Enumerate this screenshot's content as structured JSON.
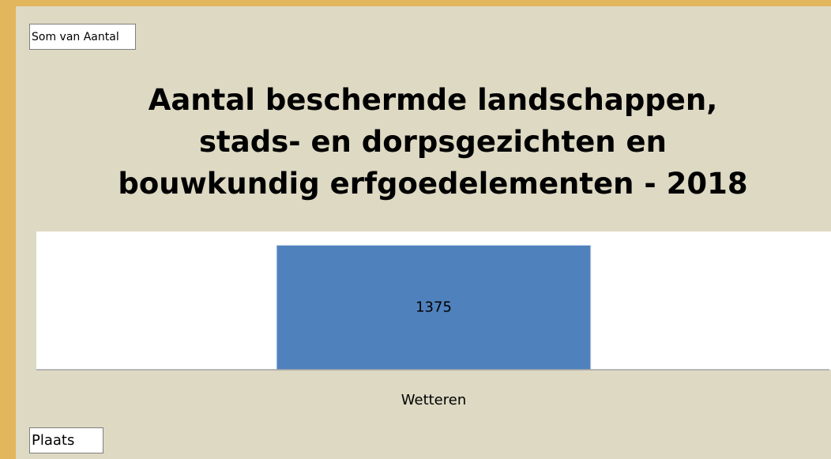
{
  "chart_data": {
    "type": "bar",
    "value_field": "Som van Aantal",
    "title": "Aantal beschermde landschappen, stads- en dorpsgezichten en bouwkundig erfgoedelementen - 2018",
    "categories": [
      "Wetteren"
    ],
    "values": [
      1375
    ],
    "color": "#4f81bd",
    "axis_field": "Plaats"
  }
}
